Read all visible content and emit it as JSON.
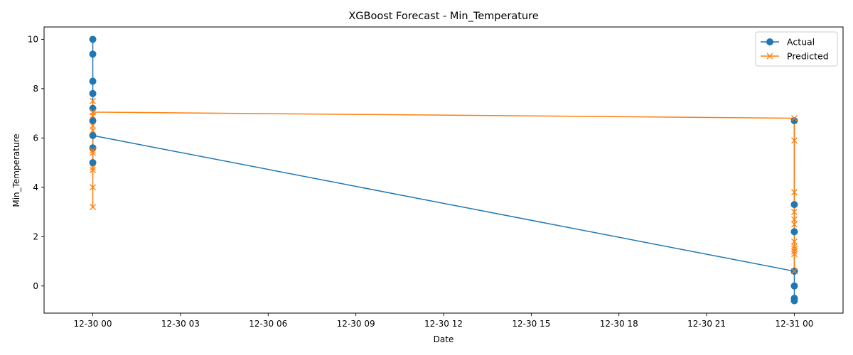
{
  "chart_data": {
    "type": "line",
    "title": "XGBoost Forecast - Min_Temperature",
    "xlabel": "Date",
    "ylabel": "Min_Temperature",
    "xlim": [
      "12-29 22:20",
      "12-31 01:40"
    ],
    "ylim": [
      -1.1,
      10.5
    ],
    "x_ticks": [
      "12-30 00",
      "12-30 03",
      "12-30 06",
      "12-30 09",
      "12-30 12",
      "12-30 15",
      "12-30 18",
      "12-30 21",
      "12-31 00"
    ],
    "y_ticks": [
      0,
      2,
      4,
      6,
      8,
      10
    ],
    "grid": false,
    "legend_position": "top-right",
    "series": [
      {
        "name": "Actual",
        "color": "#1f77b4",
        "marker": "circle",
        "points": [
          {
            "x": "12-30 00",
            "y": 5.0
          },
          {
            "x": "12-30 00",
            "y": 10.0
          },
          {
            "x": "12-30 00",
            "y": 9.4
          },
          {
            "x": "12-30 00",
            "y": 8.3
          },
          {
            "x": "12-30 00",
            "y": 7.8
          },
          {
            "x": "12-30 00",
            "y": 7.2
          },
          {
            "x": "12-30 00",
            "y": 6.7
          },
          {
            "x": "12-30 00",
            "y": 5.6
          },
          {
            "x": "12-30 00",
            "y": 6.1
          },
          {
            "x": "12-31 00",
            "y": 0.6
          },
          {
            "x": "12-31 00",
            "y": 6.7
          },
          {
            "x": "12-31 00",
            "y": 3.3
          },
          {
            "x": "12-31 00",
            "y": 2.2
          },
          {
            "x": "12-31 00",
            "y": 0.0
          },
          {
            "x": "12-31 00",
            "y": -0.5
          },
          {
            "x": "12-31 00",
            "y": -0.6
          },
          {
            "x": "12-31 00",
            "y": 0.6
          }
        ]
      },
      {
        "name": "Predicted",
        "color": "#ff7f0e",
        "marker": "x",
        "points": [
          {
            "x": "12-30 00",
            "y": 3.2
          },
          {
            "x": "12-30 00",
            "y": 7.5
          },
          {
            "x": "12-30 00",
            "y": 4.0
          },
          {
            "x": "12-30 00",
            "y": 6.9
          },
          {
            "x": "12-30 00",
            "y": 4.7
          },
          {
            "x": "12-30 00",
            "y": 6.3
          },
          {
            "x": "12-30 00",
            "y": 5.4
          },
          {
            "x": "12-30 00",
            "y": 6.5
          },
          {
            "x": "12-30 00",
            "y": 4.8
          },
          {
            "x": "12-30 00",
            "y": 5.5
          },
          {
            "x": "12-30 00",
            "y": 7.05
          },
          {
            "x": "12-31 00",
            "y": 6.8
          },
          {
            "x": "12-31 00",
            "y": 5.9
          },
          {
            "x": "12-31 00",
            "y": 3.8
          },
          {
            "x": "12-31 00",
            "y": 1.3
          },
          {
            "x": "12-31 00",
            "y": 2.7
          },
          {
            "x": "12-31 00",
            "y": 1.6
          },
          {
            "x": "12-31 00",
            "y": 3.0
          },
          {
            "x": "12-31 00",
            "y": 1.4
          },
          {
            "x": "12-31 00",
            "y": 1.8
          },
          {
            "x": "12-31 00",
            "y": 2.5
          },
          {
            "x": "12-31 00",
            "y": 1.5
          },
          {
            "x": "12-31 00",
            "y": 0.6
          }
        ]
      }
    ]
  }
}
